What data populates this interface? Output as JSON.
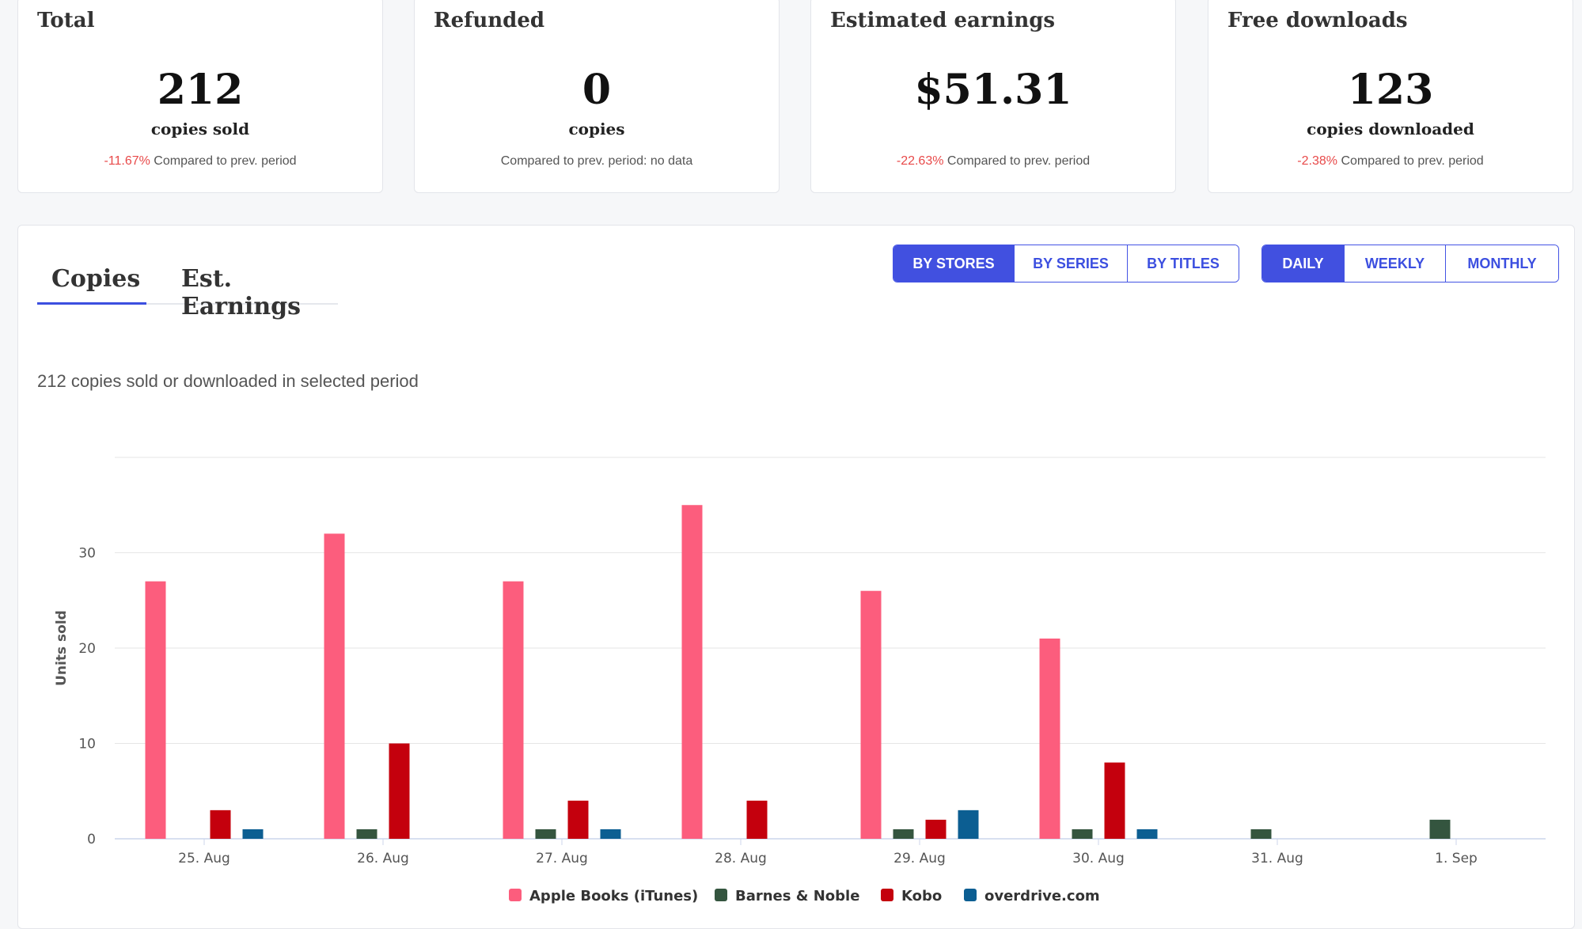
{
  "stats": [
    {
      "title": "Total",
      "value": "212",
      "unit": "copies sold",
      "change": "-11.67%",
      "compare": " Compared to prev. period"
    },
    {
      "title": "Refunded",
      "value": "0",
      "unit": "copies",
      "change": "",
      "compare": "Compared to prev. period: no data"
    },
    {
      "title": "Estimated earnings",
      "value": "$51.31",
      "unit": "",
      "change": "-22.63%",
      "compare": " Compared to prev. period"
    },
    {
      "title": "Free downloads",
      "value": "123",
      "unit": "copies downloaded",
      "change": "-2.38%",
      "compare": " Compared to prev. period"
    }
  ],
  "tabs": {
    "copies": "Copies",
    "earnings": "Est. Earnings"
  },
  "group_buttons": {
    "stores": "BY STORES",
    "series": "BY SERIES",
    "titles": "BY TITLES"
  },
  "period_buttons": {
    "daily": "DAILY",
    "weekly": "WEEKLY",
    "monthly": "MONTHLY"
  },
  "summary_text": "212 copies sold or downloaded in selected period",
  "colors": {
    "accent": "#4150e0",
    "negative": "#e84a4a"
  },
  "chart_data": {
    "type": "bar",
    "categories": [
      "25. Aug",
      "26. Aug",
      "27. Aug",
      "28. Aug",
      "29. Aug",
      "30. Aug",
      "31. Aug",
      "1. Sep"
    ],
    "ylabel": "Units sold",
    "yticks": [
      0,
      10,
      20,
      30
    ],
    "ylim": [
      0,
      40
    ],
    "grid": true,
    "legend_position": "bottom",
    "series": [
      {
        "name": "Apple Books (iTunes)",
        "color": "#fc5d7d",
        "values": [
          27,
          32,
          27,
          35,
          26,
          21,
          0,
          0
        ]
      },
      {
        "name": "Barnes & Noble",
        "color": "#34553f",
        "values": [
          0,
          1,
          1,
          0,
          1,
          1,
          1,
          2
        ]
      },
      {
        "name": "Kobo",
        "color": "#c4000d",
        "values": [
          3,
          10,
          4,
          4,
          2,
          8,
          0,
          0
        ]
      },
      {
        "name": "overdrive.com",
        "color": "#0c5e92",
        "values": [
          1,
          0,
          1,
          0,
          3,
          1,
          0,
          0
        ]
      }
    ]
  }
}
